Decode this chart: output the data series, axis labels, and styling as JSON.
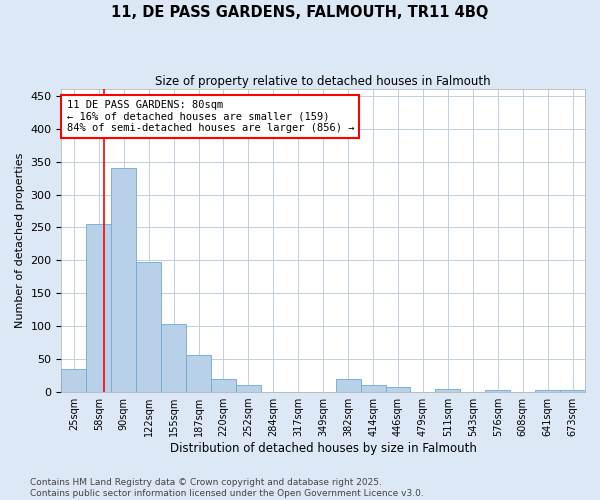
{
  "title": "11, DE PASS GARDENS, FALMOUTH, TR11 4BQ",
  "subtitle": "Size of property relative to detached houses in Falmouth",
  "xlabel": "Distribution of detached houses by size in Falmouth",
  "ylabel": "Number of detached properties",
  "bin_labels": [
    "25sqm",
    "58sqm",
    "90sqm",
    "122sqm",
    "155sqm",
    "187sqm",
    "220sqm",
    "252sqm",
    "284sqm",
    "317sqm",
    "349sqm",
    "382sqm",
    "414sqm",
    "446sqm",
    "479sqm",
    "511sqm",
    "543sqm",
    "576sqm",
    "608sqm",
    "641sqm",
    "673sqm"
  ],
  "bar_heights": [
    35,
    255,
    340,
    197,
    103,
    57,
    20,
    10,
    0,
    0,
    0,
    20,
    10,
    8,
    0,
    5,
    0,
    3,
    0,
    3,
    3
  ],
  "bar_color": "#b8d0e8",
  "bar_edge_color": "#6aaad4",
  "vline_color": "red",
  "vline_x": 1.69,
  "annotation_text": "11 DE PASS GARDENS: 80sqm\n← 16% of detached houses are smaller (159)\n84% of semi-detached houses are larger (856) →",
  "ylim": [
    0,
    460
  ],
  "yticks": [
    0,
    50,
    100,
    150,
    200,
    250,
    300,
    350,
    400,
    450
  ],
  "footnote": "Contains HM Land Registry data © Crown copyright and database right 2025.\nContains public sector information licensed under the Open Government Licence v3.0.",
  "bg_color": "#dce8f5",
  "plot_bg_color": "#ffffff",
  "grid_color": "#c0d0e0"
}
